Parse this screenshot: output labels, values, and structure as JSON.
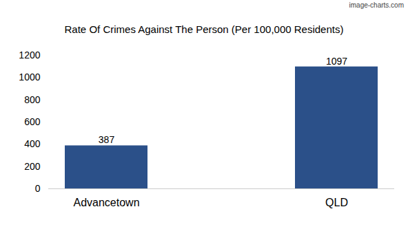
{
  "chart_data": {
    "type": "bar",
    "title": "Rate Of Crimes Against The Person (Per 100,000 Residents)",
    "caption": "image-charts.com",
    "categories": [
      "Advancetown",
      "QLD"
    ],
    "values": [
      387,
      1097
    ],
    "color": "#2b5089",
    "ylim": [
      0,
      1200
    ],
    "yticks": [
      0,
      200,
      400,
      600,
      800,
      1000,
      1200
    ],
    "grid": false,
    "data_labels": true
  }
}
